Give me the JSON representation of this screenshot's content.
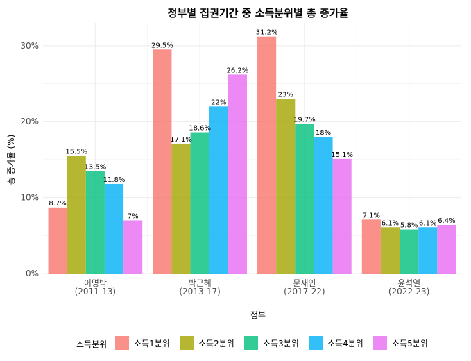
{
  "chart_data": {
    "type": "bar",
    "title": "정부별 집권기간 중 소득분위별 총 증가율",
    "xlabel": "정부",
    "ylabel": "총 증가율 (%)",
    "categories": [
      [
        "이명박",
        "(2011-13)"
      ],
      [
        "박근혜",
        "(2013-17)"
      ],
      [
        "문재인",
        "(2017-22)"
      ],
      [
        "윤석열",
        "(2022-23)"
      ]
    ],
    "ylim": [
      0,
      0.33
    ],
    "yticks": [
      0,
      0.1,
      0.2,
      0.3
    ],
    "ytick_labels": [
      "0%",
      "10%",
      "20%",
      "30%"
    ],
    "grid": true,
    "legend": {
      "title": "소득분위",
      "position": "bottom"
    },
    "series": [
      {
        "name": "소득1분위",
        "color": "#F8766D",
        "values": [
          0.087,
          0.295,
          0.312,
          0.071
        ],
        "labels": [
          "8.7%",
          "29.5%",
          "31.2%",
          "7.1%"
        ]
      },
      {
        "name": "소득2분위",
        "color": "#A3A500",
        "values": [
          0.155,
          0.171,
          0.23,
          0.061
        ],
        "labels": [
          "15.5%",
          "17.1%",
          "23%",
          "6.1%"
        ]
      },
      {
        "name": "소득3분위",
        "color": "#00BF7D",
        "values": [
          0.135,
          0.186,
          0.197,
          0.058
        ],
        "labels": [
          "13.5%",
          "18.6%",
          "19.7%",
          "5.8%"
        ]
      },
      {
        "name": "소득4분위",
        "color": "#00B0F6",
        "values": [
          0.118,
          0.22,
          0.18,
          0.061
        ],
        "labels": [
          "11.8%",
          "22%",
          "18%",
          "6.1%"
        ]
      },
      {
        "name": "소득5분위",
        "color": "#E76BF3",
        "values": [
          0.07,
          0.262,
          0.151,
          0.064
        ],
        "labels": [
          "7%",
          "26.2%",
          "15.1%",
          "6.4%"
        ]
      }
    ]
  }
}
